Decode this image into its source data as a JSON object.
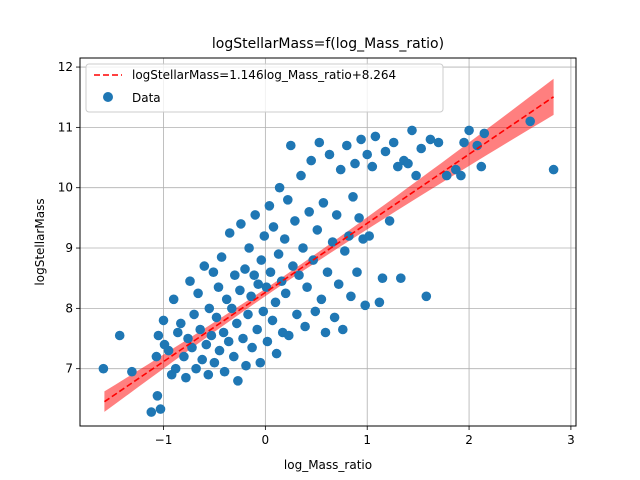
{
  "chart_data": {
    "type": "scatter",
    "title": "logStellarMass=f(log_Mass_ratio)",
    "xlabel": "log_Mass_ratio",
    "ylabel": "logStellarMass",
    "xlim": [
      -1.82,
      3.05
    ],
    "ylim": [
      6.05,
      12.15
    ],
    "xticks": [
      -1,
      0,
      1,
      2,
      3
    ],
    "yticks": [
      7,
      8,
      9,
      10,
      11,
      12
    ],
    "grid": true,
    "legend_position": "top-left",
    "colors": {
      "points": "#1f77b4",
      "fit_line": "#ff0000",
      "band": "#ff0000"
    },
    "fit": {
      "label": "logStellarMass=1.146log_Mass_ratio+8.264",
      "slope": 1.146,
      "intercept": 8.264,
      "x_range": [
        -1.58,
        2.83
      ],
      "band_halfwidth_at_ends": 0.3
    },
    "scatter_label": "Data",
    "series": [
      {
        "name": "Data",
        "points": [
          [
            -1.59,
            7.0
          ],
          [
            -1.43,
            7.55
          ],
          [
            -1.31,
            6.95
          ],
          [
            -1.12,
            6.28
          ],
          [
            -1.06,
            6.55
          ],
          [
            -1.03,
            6.33
          ],
          [
            -1.07,
            7.2
          ],
          [
            -1.05,
            7.55
          ],
          [
            -0.99,
            7.4
          ],
          [
            -1.0,
            7.8
          ],
          [
            -0.95,
            7.3
          ],
          [
            -0.92,
            6.9
          ],
          [
            -0.9,
            8.15
          ],
          [
            -0.88,
            7.0
          ],
          [
            -0.86,
            7.6
          ],
          [
            -0.83,
            7.75
          ],
          [
            -0.8,
            7.2
          ],
          [
            -0.78,
            6.85
          ],
          [
            -0.76,
            7.5
          ],
          [
            -0.74,
            8.45
          ],
          [
            -0.72,
            7.35
          ],
          [
            -0.7,
            7.9
          ],
          [
            -0.68,
            7.0
          ],
          [
            -0.66,
            8.25
          ],
          [
            -0.64,
            7.65
          ],
          [
            -0.62,
            7.15
          ],
          [
            -0.6,
            8.7
          ],
          [
            -0.58,
            7.4
          ],
          [
            -0.56,
            6.9
          ],
          [
            -0.55,
            8.0
          ],
          [
            -0.53,
            7.55
          ],
          [
            -0.51,
            8.6
          ],
          [
            -0.5,
            7.1
          ],
          [
            -0.48,
            7.85
          ],
          [
            -0.46,
            8.35
          ],
          [
            -0.45,
            7.3
          ],
          [
            -0.43,
            8.85
          ],
          [
            -0.41,
            7.6
          ],
          [
            -0.4,
            6.95
          ],
          [
            -0.38,
            8.15
          ],
          [
            -0.36,
            7.45
          ],
          [
            -0.35,
            9.25
          ],
          [
            -0.33,
            8.0
          ],
          [
            -0.31,
            7.2
          ],
          [
            -0.3,
            8.55
          ],
          [
            -0.28,
            7.75
          ],
          [
            -0.27,
            6.8
          ],
          [
            -0.25,
            8.3
          ],
          [
            -0.24,
            9.4
          ],
          [
            -0.22,
            7.5
          ],
          [
            -0.2,
            8.65
          ],
          [
            -0.19,
            7.05
          ],
          [
            -0.17,
            7.9
          ],
          [
            -0.16,
            9.0
          ],
          [
            -0.14,
            8.2
          ],
          [
            -0.13,
            7.35
          ],
          [
            -0.11,
            8.55
          ],
          [
            -0.1,
            9.55
          ],
          [
            -0.08,
            7.65
          ],
          [
            -0.07,
            8.4
          ],
          [
            -0.05,
            7.1
          ],
          [
            -0.04,
            8.8
          ],
          [
            -0.02,
            7.95
          ],
          [
            -0.01,
            9.2
          ],
          [
            0.01,
            8.35
          ],
          [
            0.02,
            7.45
          ],
          [
            0.04,
            9.7
          ],
          [
            0.05,
            8.6
          ],
          [
            0.07,
            7.8
          ],
          [
            0.08,
            9.35
          ],
          [
            0.1,
            8.1
          ],
          [
            0.11,
            7.25
          ],
          [
            0.13,
            8.9
          ],
          [
            0.14,
            10.0
          ],
          [
            0.16,
            8.45
          ],
          [
            0.17,
            7.6
          ],
          [
            0.19,
            9.15
          ],
          [
            0.2,
            8.25
          ],
          [
            0.22,
            9.8
          ],
          [
            0.23,
            7.55
          ],
          [
            0.25,
            10.7
          ],
          [
            0.27,
            8.7
          ],
          [
            0.29,
            9.45
          ],
          [
            0.31,
            7.9
          ],
          [
            0.33,
            8.55
          ],
          [
            0.35,
            10.2
          ],
          [
            0.37,
            9.0
          ],
          [
            0.39,
            7.7
          ],
          [
            0.41,
            8.35
          ],
          [
            0.43,
            9.6
          ],
          [
            0.45,
            10.45
          ],
          [
            0.47,
            8.8
          ],
          [
            0.49,
            7.95
          ],
          [
            0.51,
            9.3
          ],
          [
            0.53,
            10.75
          ],
          [
            0.55,
            8.15
          ],
          [
            0.57,
            9.75
          ],
          [
            0.59,
            7.6
          ],
          [
            0.61,
            8.6
          ],
          [
            0.63,
            10.55
          ],
          [
            0.66,
            9.1
          ],
          [
            0.68,
            7.85
          ],
          [
            0.7,
            9.55
          ],
          [
            0.72,
            8.4
          ],
          [
            0.74,
            10.3
          ],
          [
            0.76,
            7.65
          ],
          [
            0.78,
            8.95
          ],
          [
            0.8,
            10.7
          ],
          [
            0.82,
            9.2
          ],
          [
            0.84,
            8.2
          ],
          [
            0.86,
            9.85
          ],
          [
            0.88,
            10.4
          ],
          [
            0.9,
            8.6
          ],
          [
            0.92,
            9.5
          ],
          [
            0.94,
            10.8
          ],
          [
            0.96,
            9.15
          ],
          [
            0.98,
            8.05
          ],
          [
            1.0,
            10.55
          ],
          [
            1.02,
            9.2
          ],
          [
            1.05,
            10.35
          ],
          [
            1.08,
            10.85
          ],
          [
            1.12,
            8.1
          ],
          [
            1.15,
            8.5
          ],
          [
            1.18,
            10.6
          ],
          [
            1.22,
            9.45
          ],
          [
            1.26,
            10.75
          ],
          [
            1.3,
            10.35
          ],
          [
            1.33,
            8.5
          ],
          [
            1.36,
            10.45
          ],
          [
            1.4,
            10.4
          ],
          [
            1.44,
            10.95
          ],
          [
            1.48,
            10.2
          ],
          [
            1.53,
            10.65
          ],
          [
            1.58,
            8.2
          ],
          [
            1.62,
            10.8
          ],
          [
            1.7,
            10.75
          ],
          [
            1.78,
            10.2
          ],
          [
            1.87,
            10.3
          ],
          [
            1.92,
            10.2
          ],
          [
            1.95,
            10.75
          ],
          [
            2.0,
            10.95
          ],
          [
            2.08,
            10.7
          ],
          [
            2.12,
            10.35
          ],
          [
            2.15,
            10.9
          ],
          [
            2.6,
            11.1
          ],
          [
            2.83,
            10.3
          ]
        ]
      }
    ]
  }
}
